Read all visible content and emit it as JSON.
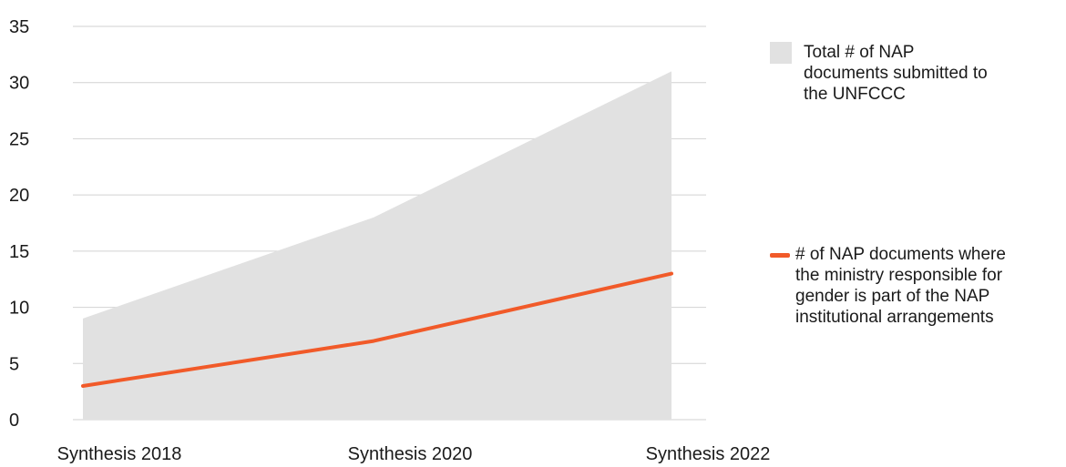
{
  "chart_data": {
    "type": "area",
    "categories": [
      "Synthesis 2018",
      "Synthesis 2020",
      "Synthesis 2022"
    ],
    "ylim": [
      0,
      35
    ],
    "y_ticks": [
      "0",
      "5",
      "10",
      "15",
      "20",
      "25",
      "30",
      "35"
    ],
    "grid": true,
    "legend_position": "right",
    "series": [
      {
        "name": "Total # of NAP documents submitted to the UNFCCC",
        "type": "area",
        "values": [
          9,
          18,
          31
        ],
        "color": "#e1e1e1"
      },
      {
        "name": "# of NAP documents where the ministry responsible for gender is part of the NAP institutional arrangements",
        "type": "line",
        "values": [
          3,
          7,
          13
        ],
        "color": "#f15a29"
      }
    ],
    "gridline_color": "#d2d2d2"
  },
  "legend": {
    "area_label": "Total # of NAP\ndocuments submitted to\nthe UNFCCC",
    "line_label": "# of NAP documents where\nthe ministry responsible for\ngender is part of the NAP\ninstitutional arrangements"
  }
}
